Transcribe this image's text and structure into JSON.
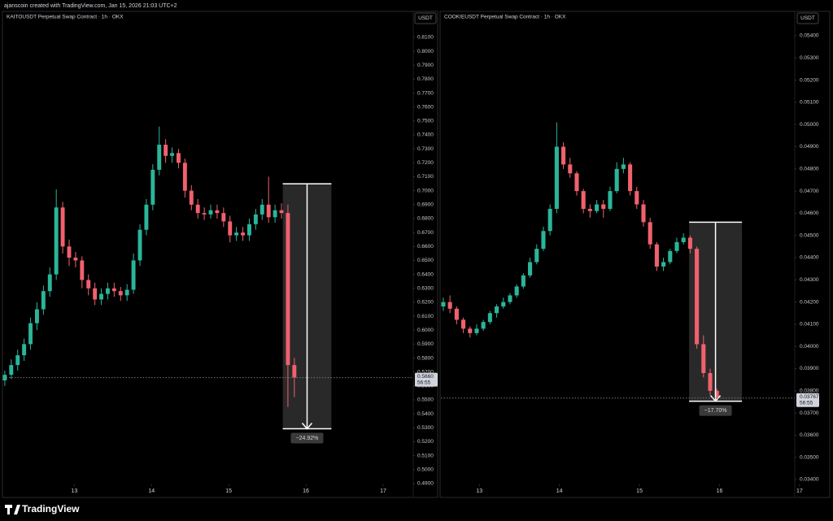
{
  "header": "ajanscoin created with TradingView.com, Jan 15, 2026 21:03 UTC+2",
  "footer": "TradingView",
  "chart_data": [
    {
      "type": "candlestick",
      "title": "KAITOUSDT Perpetual Swap Contract · 1h · OKX",
      "currency": "USDT",
      "up_color": "#2bb59a",
      "down_color": "#f0616d",
      "grid": false,
      "x": [
        12.1,
        12.1833,
        12.2667,
        12.35,
        12.4333,
        12.5167,
        12.6,
        12.6833,
        12.7667,
        12.85,
        12.9333,
        13.0167,
        13.1,
        13.1833,
        13.2667,
        13.35,
        13.4333,
        13.5167,
        13.6,
        13.6833,
        13.7667,
        13.85,
        13.9333,
        14.0167,
        14.1,
        14.1833,
        14.2667,
        14.35,
        14.4333,
        14.5167,
        14.6,
        14.6833,
        14.7667,
        14.85,
        14.9333,
        15.0167,
        15.1,
        15.1833,
        15.2667,
        15.35,
        15.4333,
        15.5167,
        15.6,
        15.6833,
        15.7667,
        15.85
      ],
      "open": [
        0.564,
        0.568,
        0.575,
        0.582,
        0.59,
        0.605,
        0.615,
        0.628,
        0.64,
        0.688,
        0.66,
        0.652,
        0.65,
        0.636,
        0.63,
        0.622,
        0.626,
        0.63,
        0.628,
        0.625,
        0.629,
        0.65,
        0.672,
        0.69,
        0.715,
        0.733,
        0.725,
        0.727,
        0.72,
        0.7,
        0.69,
        0.684,
        0.683,
        0.686,
        0.684,
        0.678,
        0.668,
        0.67,
        0.668,
        0.676,
        0.683,
        0.69,
        0.681,
        0.686,
        0.684,
        0.575
      ],
      "high": [
        0.571,
        0.579,
        0.586,
        0.594,
        0.609,
        0.62,
        0.632,
        0.645,
        0.701,
        0.692,
        0.665,
        0.656,
        0.653,
        0.64,
        0.634,
        0.63,
        0.634,
        0.634,
        0.631,
        0.633,
        0.655,
        0.676,
        0.694,
        0.719,
        0.746,
        0.737,
        0.731,
        0.73,
        0.723,
        0.704,
        0.694,
        0.688,
        0.69,
        0.69,
        0.688,
        0.682,
        0.674,
        0.674,
        0.68,
        0.687,
        0.694,
        0.71,
        0.69,
        0.691,
        0.69,
        0.58
      ],
      "low": [
        0.56,
        0.565,
        0.571,
        0.578,
        0.586,
        0.6,
        0.611,
        0.624,
        0.636,
        0.655,
        0.646,
        0.645,
        0.63,
        0.625,
        0.618,
        0.618,
        0.622,
        0.624,
        0.621,
        0.621,
        0.626,
        0.646,
        0.668,
        0.686,
        0.711,
        0.72,
        0.72,
        0.716,
        0.695,
        0.686,
        0.68,
        0.679,
        0.68,
        0.68,
        0.674,
        0.663,
        0.664,
        0.664,
        0.664,
        0.672,
        0.679,
        0.677,
        0.677,
        0.68,
        0.545,
        0.552
      ],
      "close": [
        0.568,
        0.575,
        0.582,
        0.59,
        0.605,
        0.615,
        0.628,
        0.64,
        0.688,
        0.66,
        0.652,
        0.65,
        0.636,
        0.63,
        0.622,
        0.626,
        0.63,
        0.628,
        0.625,
        0.629,
        0.65,
        0.672,
        0.69,
        0.715,
        0.733,
        0.725,
        0.727,
        0.72,
        0.7,
        0.69,
        0.684,
        0.683,
        0.686,
        0.684,
        0.678,
        0.668,
        0.67,
        0.668,
        0.676,
        0.683,
        0.69,
        0.681,
        0.686,
        0.684,
        0.575,
        0.566
      ],
      "xlim": [
        12.08,
        17.39
      ],
      "xticks": [
        13,
        14,
        15,
        16,
        17
      ],
      "ylim": [
        0.4894,
        0.8286
      ],
      "yticks": [
        {
          "value": 0.49,
          "label": "0.4900"
        },
        {
          "value": 0.5,
          "label": "0.5000"
        },
        {
          "value": 0.51,
          "label": "0.5100"
        },
        {
          "value": 0.52,
          "label": "0.5200"
        },
        {
          "value": 0.53,
          "label": "0.5300"
        },
        {
          "value": 0.54,
          "label": "0.5400"
        },
        {
          "value": 0.55,
          "label": "0.5500"
        },
        {
          "value": 0.56,
          "label": "0.5600"
        },
        {
          "value": 0.57,
          "label": "0.5700"
        },
        {
          "value": 0.58,
          "label": "0.5800"
        },
        {
          "value": 0.59,
          "label": "0.5900"
        },
        {
          "value": 0.6,
          "label": "0.6000"
        },
        {
          "value": 0.61,
          "label": "0.6100"
        },
        {
          "value": 0.62,
          "label": "0.6200"
        },
        {
          "value": 0.63,
          "label": "0.6300"
        },
        {
          "value": 0.64,
          "label": "0.6400"
        },
        {
          "value": 0.65,
          "label": "0.6500"
        },
        {
          "value": 0.66,
          "label": "0.6600"
        },
        {
          "value": 0.67,
          "label": "0.6700"
        },
        {
          "value": 0.68,
          "label": "0.6800"
        },
        {
          "value": 0.69,
          "label": "0.6900"
        },
        {
          "value": 0.7,
          "label": "0.7000"
        },
        {
          "value": 0.71,
          "label": "0.7100"
        },
        {
          "value": 0.72,
          "label": "0.7200"
        },
        {
          "value": 0.73,
          "label": "0.7300"
        },
        {
          "value": 0.74,
          "label": "0.7400"
        },
        {
          "value": 0.75,
          "label": "0.7500"
        },
        {
          "value": 0.76,
          "label": "0.7600"
        },
        {
          "value": 0.77,
          "label": "0.7700"
        },
        {
          "value": 0.78,
          "label": "0.7800"
        },
        {
          "value": 0.79,
          "label": "0.7900"
        },
        {
          "value": 0.8,
          "label": "0.8000"
        },
        {
          "value": 0.81,
          "label": "0.8100"
        }
      ],
      "last_price": {
        "value": 0.566,
        "label": "0.5660"
      },
      "countdown": "56:55",
      "measure": {
        "from": 0.705,
        "to": 0.5293,
        "x_start": 15.7,
        "x_end": 16.33,
        "label": "−24.92%"
      }
    },
    {
      "type": "candlestick",
      "title": "COOKIEUSDT Perpetual Swap Contract · 1h · OKX",
      "currency": "USDT",
      "up_color": "#2bb59a",
      "down_color": "#f0616d",
      "grid": false,
      "x": [
        12.55,
        12.6333,
        12.7167,
        12.8,
        12.8833,
        12.9667,
        13.05,
        13.1333,
        13.2167,
        13.3,
        13.3833,
        13.4667,
        13.55,
        13.6333,
        13.7167,
        13.8,
        13.8833,
        13.9667,
        14.05,
        14.1333,
        14.2167,
        14.3,
        14.3833,
        14.4667,
        14.55,
        14.6333,
        14.7167,
        14.8,
        14.8833,
        14.9667,
        15.05,
        15.1333,
        15.2167,
        15.3,
        15.3833,
        15.4667,
        15.55,
        15.6333,
        15.7167,
        15.8,
        15.8833,
        15.9667
      ],
      "open": [
        0.0418,
        0.042,
        0.0417,
        0.0412,
        0.0408,
        0.0406,
        0.0408,
        0.0411,
        0.0415,
        0.0418,
        0.042,
        0.0423,
        0.0427,
        0.0432,
        0.0438,
        0.0444,
        0.0452,
        0.0462,
        0.049,
        0.0482,
        0.0478,
        0.047,
        0.0462,
        0.0461,
        0.0464,
        0.0462,
        0.047,
        0.048,
        0.0482,
        0.047,
        0.0464,
        0.0456,
        0.0446,
        0.0436,
        0.0438,
        0.0443,
        0.0447,
        0.0449,
        0.0444,
        0.0401,
        0.0388,
        0.038
      ],
      "high": [
        0.0422,
        0.0423,
        0.0418,
        0.0413,
        0.0409,
        0.041,
        0.0412,
        0.0416,
        0.0419,
        0.0422,
        0.0424,
        0.0428,
        0.0433,
        0.044,
        0.0446,
        0.0454,
        0.0464,
        0.0501,
        0.0492,
        0.0485,
        0.0479,
        0.0471,
        0.0464,
        0.0466,
        0.0466,
        0.0472,
        0.0483,
        0.0485,
        0.0483,
        0.0472,
        0.0466,
        0.0458,
        0.0447,
        0.044,
        0.0444,
        0.0449,
        0.0451,
        0.045,
        0.0445,
        0.0405,
        0.039,
        0.0381
      ],
      "low": [
        0.0416,
        0.0415,
        0.041,
        0.0406,
        0.0404,
        0.0405,
        0.0407,
        0.041,
        0.0413,
        0.0417,
        0.0419,
        0.0422,
        0.0426,
        0.0431,
        0.0437,
        0.0443,
        0.045,
        0.046,
        0.048,
        0.0476,
        0.0468,
        0.046,
        0.0458,
        0.046,
        0.0458,
        0.0461,
        0.0469,
        0.0478,
        0.0468,
        0.0462,
        0.0454,
        0.0444,
        0.0434,
        0.0434,
        0.0437,
        0.0442,
        0.0446,
        0.0442,
        0.0399,
        0.0386,
        0.0378,
        0.0376
      ],
      "close": [
        0.042,
        0.0417,
        0.0412,
        0.0408,
        0.0406,
        0.0408,
        0.0411,
        0.0415,
        0.0418,
        0.042,
        0.0423,
        0.0427,
        0.0432,
        0.0438,
        0.0444,
        0.0452,
        0.0462,
        0.049,
        0.0482,
        0.0478,
        0.047,
        0.0462,
        0.0461,
        0.0464,
        0.0462,
        0.047,
        0.048,
        0.0482,
        0.047,
        0.0464,
        0.0456,
        0.0446,
        0.0436,
        0.0438,
        0.0443,
        0.0447,
        0.0449,
        0.0444,
        0.0401,
        0.0388,
        0.038,
        0.03767
      ],
      "xlim": [
        12.52,
        16.94
      ],
      "xticks": [
        13,
        14,
        15,
        16,
        17
      ],
      "ylim": [
        0.03378,
        0.0551
      ],
      "yticks": [
        {
          "value": 0.034,
          "label": "0.03400"
        },
        {
          "value": 0.035,
          "label": "0.03500"
        },
        {
          "value": 0.036,
          "label": "0.03600"
        },
        {
          "value": 0.037,
          "label": "0.03700"
        },
        {
          "value": 0.038,
          "label": "0.03800"
        },
        {
          "value": 0.039,
          "label": "0.03900"
        },
        {
          "value": 0.04,
          "label": "0.04000"
        },
        {
          "value": 0.041,
          "label": "0.04100"
        },
        {
          "value": 0.042,
          "label": "0.04200"
        },
        {
          "value": 0.043,
          "label": "0.04300"
        },
        {
          "value": 0.044,
          "label": "0.04400"
        },
        {
          "value": 0.045,
          "label": "0.04500"
        },
        {
          "value": 0.046,
          "label": "0.04600"
        },
        {
          "value": 0.047,
          "label": "0.04700"
        },
        {
          "value": 0.048,
          "label": "0.04800"
        },
        {
          "value": 0.049,
          "label": "0.04900"
        },
        {
          "value": 0.05,
          "label": "0.05000"
        },
        {
          "value": 0.051,
          "label": "0.05100"
        },
        {
          "value": 0.052,
          "label": "0.05200"
        },
        {
          "value": 0.053,
          "label": "0.05300"
        },
        {
          "value": 0.054,
          "label": "0.05400"
        }
      ],
      "last_price": {
        "value": 0.03767,
        "label": "0.03767"
      },
      "countdown": "56:55",
      "measure": {
        "from": 0.0456,
        "to": 0.03753,
        "x_start": 15.62,
        "x_end": 16.28,
        "label": "−17.70%"
      }
    }
  ]
}
